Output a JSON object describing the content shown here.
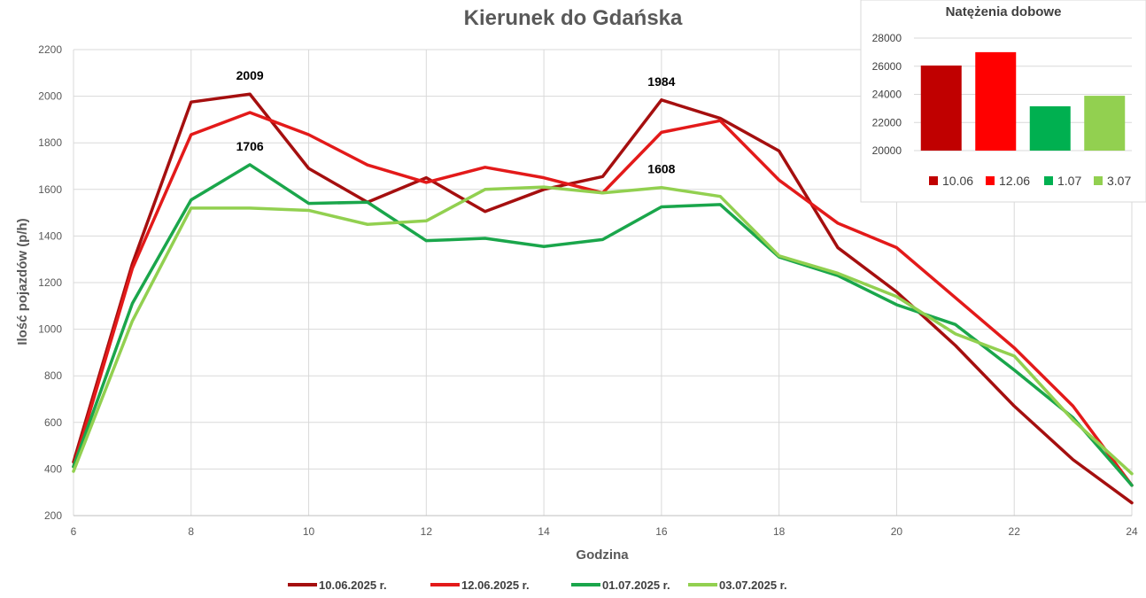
{
  "chart_data": [
    {
      "type": "line",
      "title": "Kierunek do Gdańska",
      "xlabel": "Godzina",
      "ylabel": "Ilość pojazdów (p/h)",
      "xlim": [
        6,
        24
      ],
      "ylim": [
        200,
        2200
      ],
      "x_ticks": [
        6,
        8,
        10,
        12,
        14,
        16,
        18,
        20,
        22,
        24
      ],
      "y_ticks": [
        200,
        400,
        600,
        800,
        1000,
        1200,
        1400,
        1600,
        1800,
        2000,
        2200
      ],
      "x": [
        6,
        7,
        8,
        9,
        10,
        11,
        12,
        13,
        14,
        15,
        16,
        17,
        18,
        19,
        20,
        21,
        22,
        23,
        24
      ],
      "grid": true,
      "legend_position": "bottom",
      "series": [
        {
          "name": "10.06.2025 r.",
          "color": "#A50F0F",
          "values": [
            430,
            1280,
            1975,
            2009,
            1690,
            1545,
            1650,
            1505,
            1600,
            1655,
            1984,
            1905,
            1765,
            1350,
            1160,
            930,
            670,
            440,
            255
          ]
        },
        {
          "name": "12.06.2025 r.",
          "color": "#E31A1A",
          "values": [
            410,
            1260,
            1835,
            1930,
            1835,
            1705,
            1630,
            1695,
            1650,
            1585,
            1845,
            1895,
            1640,
            1455,
            1350,
            1135,
            920,
            670,
            330
          ]
        },
        {
          "name": "01.07.2025 r.",
          "color": "#1AA64B",
          "values": [
            410,
            1110,
            1555,
            1706,
            1540,
            1545,
            1380,
            1390,
            1355,
            1385,
            1525,
            1535,
            1310,
            1230,
            1105,
            1020,
            825,
            620,
            330
          ]
        },
        {
          "name": "03.07.2025 r.",
          "color": "#92D050",
          "values": [
            390,
            1035,
            1520,
            1520,
            1510,
            1450,
            1465,
            1600,
            1610,
            1585,
            1608,
            1570,
            1315,
            1240,
            1140,
            980,
            885,
            610,
            380
          ]
        }
      ],
      "annotations": [
        {
          "text": "2009",
          "x": 9,
          "y": 2009
        },
        {
          "text": "1706",
          "x": 9,
          "y": 1706
        },
        {
          "text": "1984",
          "x": 16,
          "y": 1984
        },
        {
          "text": "1608",
          "x": 16,
          "y": 1608
        }
      ]
    },
    {
      "type": "bar",
      "title": "Natężenia dobowe",
      "categories": [
        "10.06",
        "12.06",
        "1.07",
        "3.07"
      ],
      "values": [
        26050,
        27000,
        23150,
        23900
      ],
      "colors": [
        "#C00000",
        "#FF0000",
        "#00B050",
        "#92D050"
      ],
      "ylim": [
        20000,
        28000
      ],
      "y_ticks": [
        20000,
        22000,
        24000,
        26000,
        28000
      ],
      "grid": true,
      "legend_position": "bottom"
    }
  ]
}
